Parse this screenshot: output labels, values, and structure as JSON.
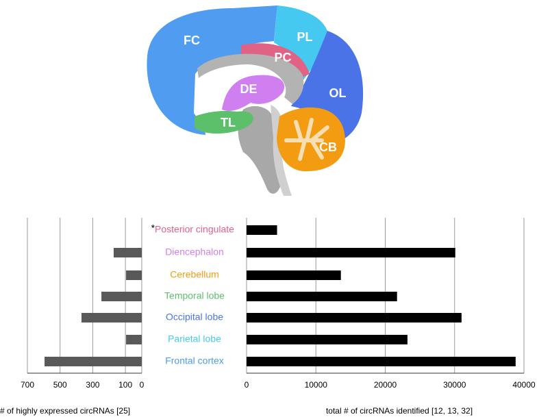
{
  "diagram": {
    "regions": [
      "FC",
      "PL",
      "PC",
      "OL",
      "DE",
      "TL",
      "CB"
    ]
  },
  "chart_data": [
    {
      "type": "hbar",
      "x_label": "# of highly expressed circRNAs [25]",
      "categories": [
        "Posterior cingulate",
        "Diencephalon",
        "Cerebellum",
        "Temporal lobe",
        "Occipital lobe",
        "Parietal lobe",
        "Frontal cortex"
      ],
      "category_colors": [
        "#e06385",
        "#cf7ff0",
        "#f39c12",
        "#5cbf6a",
        "#4a73e8",
        "#45c9f0",
        "#4f9cf0"
      ],
      "annotation": "*",
      "values": [
        null,
        172,
        96,
        247,
        369,
        96,
        595
      ],
      "color": "#595959",
      "xlim": [
        700,
        0
      ],
      "xticks": [
        700,
        500,
        300,
        100,
        0
      ],
      "grid": true
    },
    {
      "type": "hbar",
      "x_label": "total # of circRNAs identified [12, 13, 32]",
      "values": [
        4400,
        30100,
        13600,
        21700,
        31000,
        23200,
        38800
      ],
      "color": "#000000",
      "xlim": [
        0,
        40000
      ],
      "xticks": [
        0,
        10000,
        20000,
        30000,
        40000
      ],
      "grid": true
    }
  ]
}
